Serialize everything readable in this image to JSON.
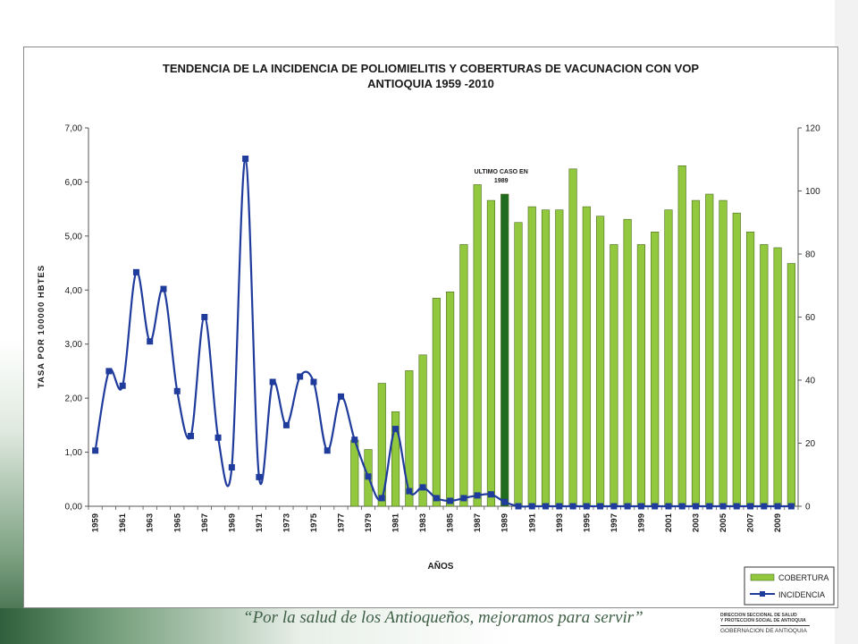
{
  "chart_data": {
    "type": "bar+line",
    "title_line1": "TENDENCIA DE LA INCIDENCIA DE POLIOMIELITIS Y COBERTURAS DE VACUNACION CON VOP",
    "title_line2": "ANTIOQUIA 1959 -2010",
    "xlabel": "AÑOS",
    "ylabel_left": "TASA POR 100000 HBTES",
    "ylim_left": [
      0,
      7
    ],
    "ylim_right": [
      0,
      120
    ],
    "left_ticks": [
      "0,00",
      "1,00",
      "2,00",
      "3,00",
      "4,00",
      "5,00",
      "6,00",
      "7,00"
    ],
    "right_ticks": [
      "0",
      "20",
      "40",
      "60",
      "80",
      "100",
      "120"
    ],
    "tick_labels": [
      "1959",
      "1961",
      "1963",
      "1965",
      "1967",
      "1969",
      "1971",
      "1973",
      "1975",
      "1977",
      "1979",
      "1981",
      "1983",
      "1985",
      "1987",
      "1989",
      "1991",
      "1993",
      "1995",
      "1997",
      "1999",
      "2001",
      "2003",
      "2005",
      "2007",
      "2009"
    ],
    "years": [
      1959,
      1960,
      1961,
      1962,
      1963,
      1964,
      1965,
      1966,
      1967,
      1968,
      1969,
      1970,
      1971,
      1972,
      1973,
      1974,
      1975,
      1976,
      1977,
      1978,
      1979,
      1980,
      1981,
      1982,
      1983,
      1984,
      1985,
      1986,
      1987,
      1988,
      1989,
      1990,
      1991,
      1992,
      1993,
      1994,
      1995,
      1996,
      1997,
      1998,
      1999,
      2000,
      2001,
      2002,
      2003,
      2004,
      2005,
      2006,
      2007,
      2008,
      2009,
      2010
    ],
    "grid": false,
    "legend_position": "bottom-right",
    "highlight_year": 1989,
    "annotation": {
      "line1": "ULTIMO CASO EN",
      "line2": "1989"
    },
    "series": [
      {
        "name": "COBERTURA",
        "axis": "right",
        "type": "bar",
        "color": "#92c83e",
        "highlight_color": "#1f6b1f",
        "values": [
          null,
          null,
          null,
          null,
          null,
          null,
          null,
          null,
          null,
          null,
          null,
          null,
          null,
          null,
          null,
          null,
          null,
          null,
          null,
          21,
          18,
          39,
          30,
          43,
          48,
          66,
          68,
          83,
          102,
          97,
          99,
          90,
          95,
          94,
          94,
          107,
          95,
          92,
          83,
          91,
          83,
          87,
          94,
          108,
          97,
          99,
          97,
          93,
          87,
          83,
          82,
          77
        ]
      },
      {
        "name": "INCIDENCIA",
        "axis": "left",
        "type": "line",
        "color": "#1f3b9c",
        "values": [
          1.03,
          2.5,
          2.23,
          4.33,
          3.05,
          4.02,
          2.13,
          1.3,
          3.5,
          1.27,
          0.72,
          6.43,
          0.54,
          2.3,
          1.5,
          2.4,
          2.3,
          1.03,
          2.03,
          1.23,
          0.55,
          0.15,
          1.43,
          0.28,
          0.35,
          0.15,
          0.1,
          0.15,
          0.2,
          0.22,
          0.08,
          0.0,
          0.0,
          0.0,
          0.0,
          0.0,
          0.0,
          0.0,
          0.0,
          0.0,
          0.0,
          0.0,
          0.0,
          0.0,
          0.0,
          0.0,
          0.0,
          0.0,
          0.0,
          0.0,
          0.0,
          0.0
        ]
      }
    ]
  },
  "footer": {
    "slogan": "“Por la salud de los Antioqueños, mejoramos para servir”",
    "logo_line1": "DIRECCION SECCIONAL DE SALUD",
    "logo_line2": "Y PROTECCION SOCIAL DE ANTIOQUIA",
    "logo_line3": "GOBERNACION DE ANTIOQUIA"
  }
}
